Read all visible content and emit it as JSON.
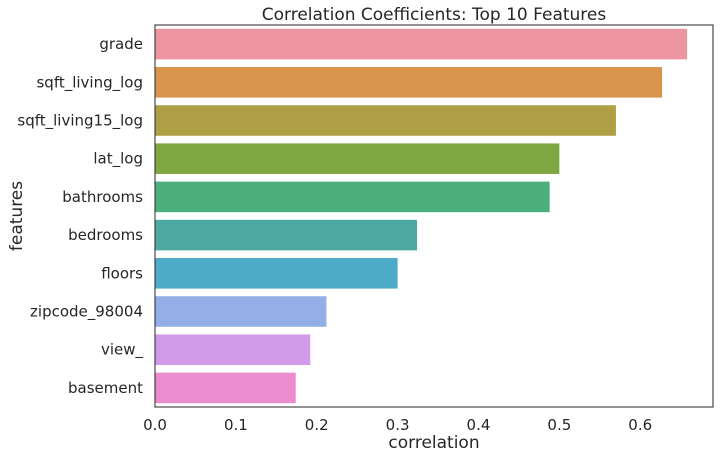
{
  "chart_data": {
    "type": "bar",
    "orientation": "horizontal",
    "title": "Correlation Coefficients: Top 10 Features",
    "xlabel": "correlation",
    "ylabel": "features",
    "categories": [
      "grade",
      "sqft_living_log",
      "sqft_living15_log",
      "lat_log",
      "bathrooms",
      "bedrooms",
      "floors",
      "zipcode_98004",
      "view_",
      "basement"
    ],
    "values": [
      0.658,
      0.627,
      0.57,
      0.5,
      0.488,
      0.324,
      0.3,
      0.212,
      0.192,
      0.174
    ],
    "colors": [
      "#ed96a1",
      "#d8944b",
      "#afa045",
      "#7fa842",
      "#4bb07d",
      "#4caaa2",
      "#4eabc7",
      "#94aee8",
      "#d19bea",
      "#ea8ccd"
    ],
    "xlim": [
      0,
      0.69
    ],
    "xticks": [
      0.0,
      0.1,
      0.2,
      0.3,
      0.4,
      0.5,
      0.6
    ],
    "xtick_labels": [
      "0.0",
      "0.1",
      "0.2",
      "0.3",
      "0.4",
      "0.5",
      "0.6"
    ],
    "grid": false
  }
}
